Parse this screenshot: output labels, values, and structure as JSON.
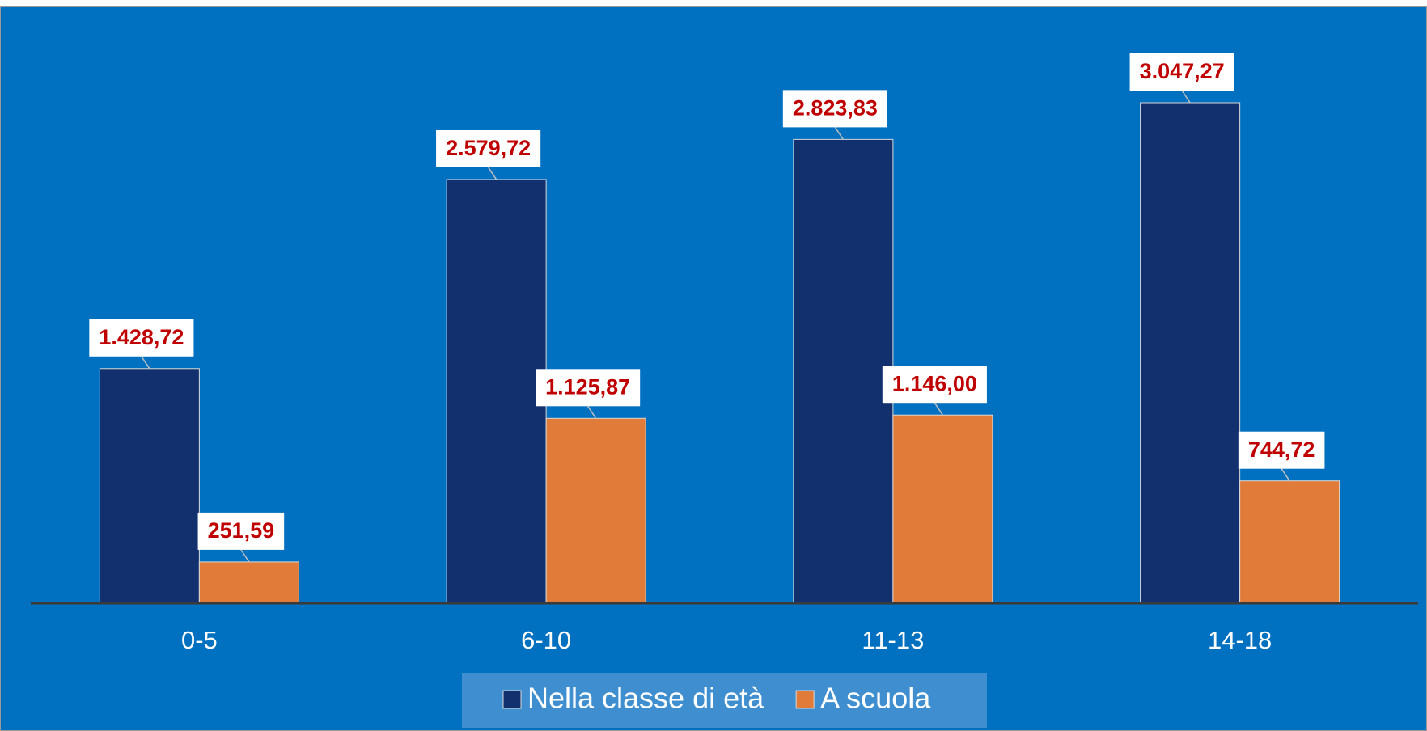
{
  "chart_data": {
    "type": "bar",
    "categories": [
      "0-5",
      "6-10",
      "11-13",
      "14-18"
    ],
    "series": [
      {
        "name": "Nella classe di età",
        "color": "#12306e",
        "values": [
          1428.72,
          2579.72,
          2823.83,
          3047.27
        ],
        "value_labels": [
          "1.428,72",
          "2.579,72",
          "2.823,83",
          "3.047,27"
        ]
      },
      {
        "name": "A scuola",
        "color": "#e07b39",
        "values": [
          251.59,
          1125.87,
          1146.0,
          744.72
        ],
        "value_labels": [
          "251,59",
          "1.125,87",
          "1.146,00",
          "744,72"
        ]
      }
    ],
    "legend": "bottom"
  }
}
